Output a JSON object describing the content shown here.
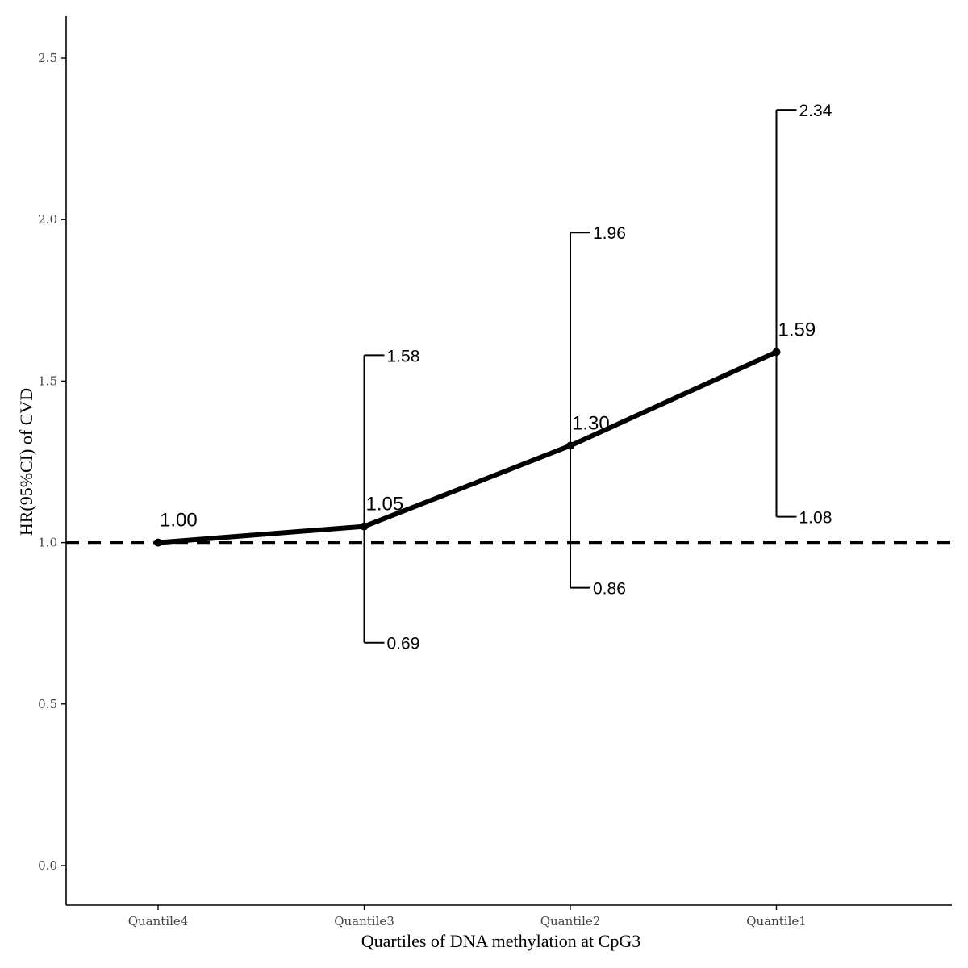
{
  "chart_data": {
    "type": "line",
    "title": "",
    "xlabel": "Quartiles of DNA methylation at CpG3",
    "ylabel": "HR(95%CI) of CVD",
    "ylim": [
      -0.12,
      2.62
    ],
    "yticks": [
      0.0,
      0.5,
      1.0,
      1.5,
      2.0,
      2.5
    ],
    "ytick_labels": [
      "0.0",
      "0.5",
      "1.0",
      "1.5",
      "2.0",
      "2.5"
    ],
    "categories": [
      "Quantile4",
      "Quantile3",
      "Quantile2",
      "Quantile1"
    ],
    "series": [
      {
        "values": [
          1.0,
          1.05,
          1.3,
          1.59
        ],
        "value_labels": [
          "1.00",
          "1.05",
          "1.30",
          "1.59"
        ],
        "ci_lower": [
          null,
          0.69,
          0.86,
          1.08
        ],
        "ci_upper": [
          null,
          1.58,
          1.96,
          2.34
        ],
        "ci_lower_labels": [
          "",
          "0.69",
          "0.86",
          "1.08"
        ],
        "ci_upper_labels": [
          "",
          "1.58",
          "1.96",
          "2.34"
        ]
      }
    ],
    "reference_line": 1.0,
    "reference_line_style": "dashed",
    "grid": false,
    "legend": "none",
    "colors": {
      "line": "#000000",
      "axis": "#000000",
      "tick_text": "#444444"
    }
  }
}
